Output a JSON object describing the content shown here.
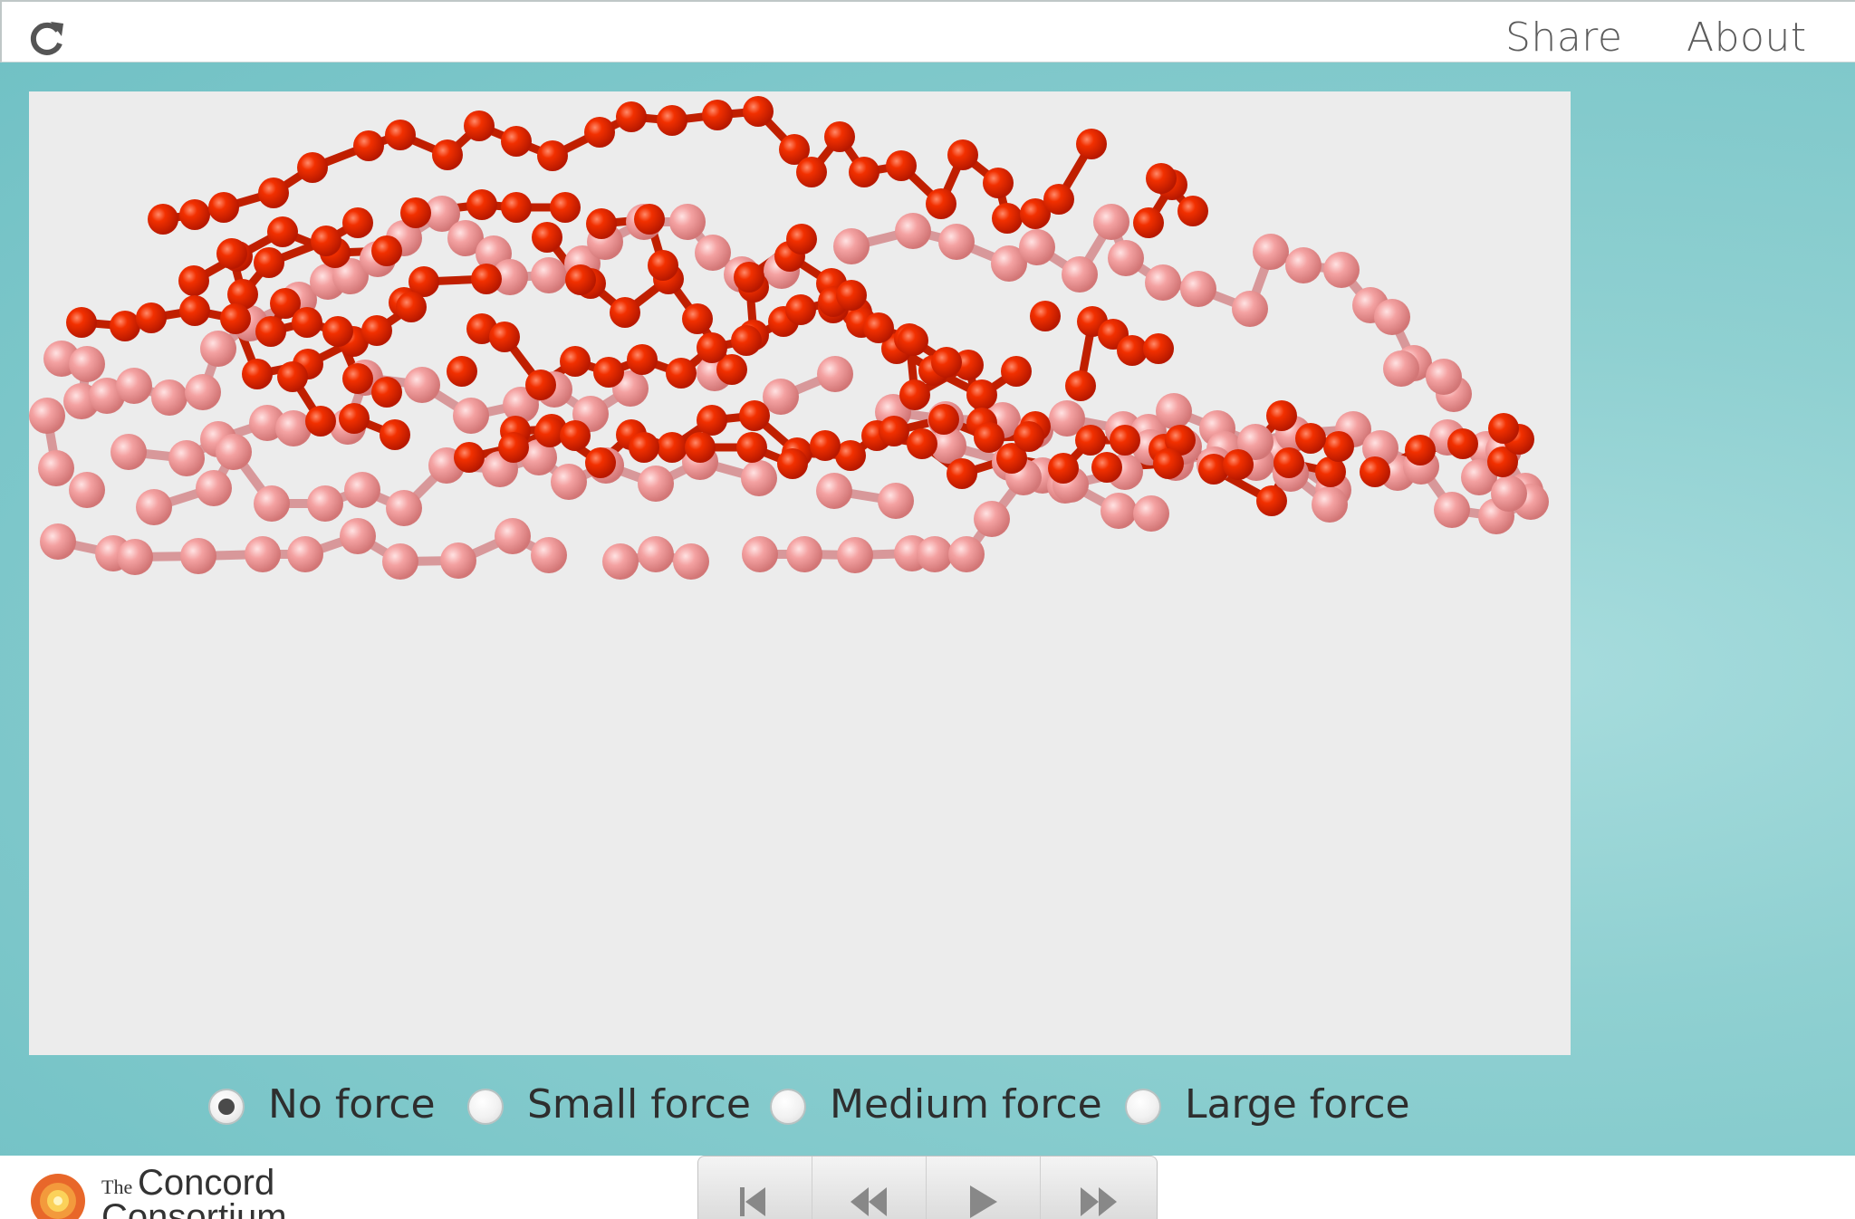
{
  "header": {
    "reload_icon": "reload-icon",
    "share_label": "Share",
    "about_label": "About"
  },
  "simulation": {
    "colors": {
      "background": "#ececec",
      "dark_atom": "#e82300",
      "light_atom": "#f08c8c",
      "dark_bond": "#c01f00",
      "light_bond": "#d8989a"
    }
  },
  "force_options": {
    "selected": "No force",
    "items": [
      {
        "label": "No force",
        "checked": true
      },
      {
        "label": "Small force",
        "checked": false
      },
      {
        "label": "Medium force",
        "checked": false
      },
      {
        "label": "Large force",
        "checked": false
      }
    ]
  },
  "footer": {
    "logo_the": "The",
    "logo_concord": "Concord",
    "logo_consortium": "Consortium",
    "playback_buttons": [
      "reset-icon",
      "step-back-icon",
      "play-icon",
      "step-forward-icon"
    ]
  }
}
